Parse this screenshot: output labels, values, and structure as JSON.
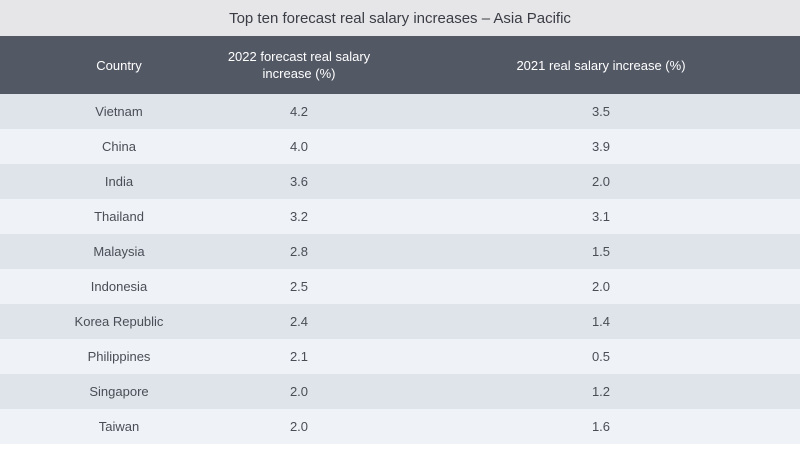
{
  "title": "Top ten forecast real salary increases – Asia Pacific",
  "columns": {
    "country": "Country",
    "forecast_2022": "2022 forecast real salary increase (%)",
    "increase_2021": "2021 real salary increase (%)"
  },
  "rows": [
    {
      "country": "Vietnam",
      "forecast_2022": "4.2",
      "increase_2021": "3.5"
    },
    {
      "country": "China",
      "forecast_2022": "4.0",
      "increase_2021": "3.9"
    },
    {
      "country": "India",
      "forecast_2022": "3.6",
      "increase_2021": "2.0"
    },
    {
      "country": "Thailand",
      "forecast_2022": "3.2",
      "increase_2021": "3.1"
    },
    {
      "country": "Malaysia",
      "forecast_2022": "2.8",
      "increase_2021": "1.5"
    },
    {
      "country": "Indonesia",
      "forecast_2022": "2.5",
      "increase_2021": "2.0"
    },
    {
      "country": "Korea Republic",
      "forecast_2022": "2.4",
      "increase_2021": "1.4"
    },
    {
      "country": "Philippines",
      "forecast_2022": "2.1",
      "increase_2021": "0.5"
    },
    {
      "country": "Singapore",
      "forecast_2022": "2.0",
      "increase_2021": "1.2"
    },
    {
      "country": "Taiwan",
      "forecast_2022": "2.0",
      "increase_2021": "1.6"
    }
  ],
  "colors": {
    "title_bg": "#e6e6e8",
    "header_bg": "#535865",
    "row_odd": "#dfe4eb",
    "row_even": "#eff2f7"
  }
}
